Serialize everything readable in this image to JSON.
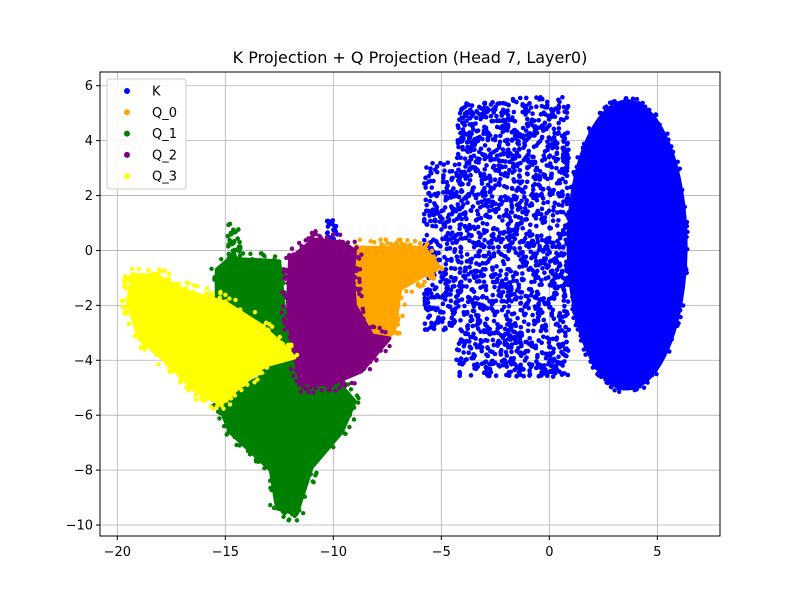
{
  "chart_data": {
    "type": "scatter",
    "title": "K Projection + Q Projection (Head 7, Layer0)",
    "xlabel": "",
    "ylabel": "",
    "xlim": [
      -20.8,
      7.9
    ],
    "ylim": [
      -10.4,
      6.5
    ],
    "xticks": [
      -20,
      -15,
      -10,
      -5,
      0,
      5
    ],
    "yticks": [
      -10,
      -8,
      -6,
      -4,
      -2,
      0,
      2,
      4,
      6
    ],
    "xtick_labels": [
      "−20",
      "−15",
      "−10",
      "−5",
      "0",
      "5"
    ],
    "ytick_labels": [
      "−10",
      "−8",
      "−6",
      "−4",
      "−2",
      "0",
      "2",
      "4",
      "6"
    ],
    "grid": true,
    "legend_position": "top-left",
    "series": [
      {
        "name": "K",
        "color": "#0000ff",
        "regions": [
          {
            "shape": "ellipse",
            "cx": 3.6,
            "cy": 0.2,
            "rx": 2.8,
            "ry": 5.3
          },
          {
            "shape": "rect",
            "x0": -1.8,
            "x1": 0.9,
            "y0": -4.6,
            "y1": 5.6
          },
          {
            "shape": "rect",
            "x0": -4.3,
            "x1": -1.8,
            "y0": -4.6,
            "y1": 5.4
          },
          {
            "shape": "rect",
            "x0": -5.8,
            "x1": -4.3,
            "y0": -2.9,
            "y1": 3.2
          },
          {
            "shape": "rect",
            "x0": -10.3,
            "x1": -9.8,
            "y0": -0.2,
            "y1": 1.2
          }
        ]
      },
      {
        "name": "Q_0",
        "color": "#ffa500",
        "regions": [
          {
            "shape": "poly",
            "points": [
              [
                -8.9,
                0.1
              ],
              [
                -6.9,
                0.1
              ],
              [
                -5.8,
                0.1
              ],
              [
                -5.1,
                -0.6
              ],
              [
                -6.9,
                -1.4
              ],
              [
                -7.2,
                -3.0
              ],
              [
                -8.0,
                -3.2
              ],
              [
                -9.0,
                -1.9
              ],
              [
                -9.1,
                -0.4
              ]
            ]
          }
        ]
      },
      {
        "name": "Q_1",
        "color": "#008000",
        "regions": [
          {
            "shape": "poly",
            "points": [
              [
                -14.8,
                -0.3
              ],
              [
                -12.5,
                -0.4
              ],
              [
                -12.3,
                -2.0
              ],
              [
                -11.9,
                -3.4
              ],
              [
                -10.0,
                -4.6
              ],
              [
                -9.0,
                -5.5
              ],
              [
                -9.6,
                -6.6
              ],
              [
                -11.0,
                -7.9
              ],
              [
                -11.7,
                -9.6
              ],
              [
                -12.6,
                -9.4
              ],
              [
                -12.9,
                -8.0
              ],
              [
                -14.8,
                -6.6
              ],
              [
                -15.3,
                -5.6
              ],
              [
                -14.4,
                -5.0
              ],
              [
                -13.0,
                -4.5
              ],
              [
                -13.6,
                -3.0
              ],
              [
                -15.4,
                -2.1
              ],
              [
                -15.4,
                -0.7
              ]
            ]
          },
          {
            "shape": "rect",
            "x0": -14.9,
            "x1": -14.3,
            "y0": -0.5,
            "y1": 1.0
          }
        ]
      },
      {
        "name": "Q_2",
        "color": "#800080",
        "regions": [
          {
            "shape": "poly",
            "points": [
              [
                -12.0,
                -0.3
              ],
              [
                -10.9,
                0.4
              ],
              [
                -9.6,
                0.3
              ],
              [
                -9.0,
                0.0
              ],
              [
                -9.1,
                -0.9
              ],
              [
                -9.0,
                -2.0
              ],
              [
                -8.2,
                -3.1
              ],
              [
                -7.4,
                -3.2
              ],
              [
                -8.7,
                -4.4
              ],
              [
                -10.2,
                -4.9
              ],
              [
                -11.5,
                -4.8
              ],
              [
                -11.9,
                -3.5
              ],
              [
                -12.1,
                -1.9
              ]
            ]
          }
        ]
      },
      {
        "name": "Q_3",
        "color": "#ffff00",
        "regions": [
          {
            "shape": "poly",
            "points": [
              [
                -19.3,
                -0.9
              ],
              [
                -18.2,
                -0.9
              ],
              [
                -16.8,
                -1.5
              ],
              [
                -15.0,
                -1.9
              ],
              [
                -13.4,
                -2.7
              ],
              [
                -12.4,
                -3.4
              ],
              [
                -11.8,
                -3.9
              ],
              [
                -13.2,
                -4.2
              ],
              [
                -14.4,
                -5.0
              ],
              [
                -15.2,
                -5.6
              ],
              [
                -16.4,
                -5.1
              ],
              [
                -17.8,
                -4.0
              ],
              [
                -19.0,
                -3.2
              ],
              [
                -19.5,
                -1.9
              ]
            ]
          }
        ]
      }
    ]
  }
}
